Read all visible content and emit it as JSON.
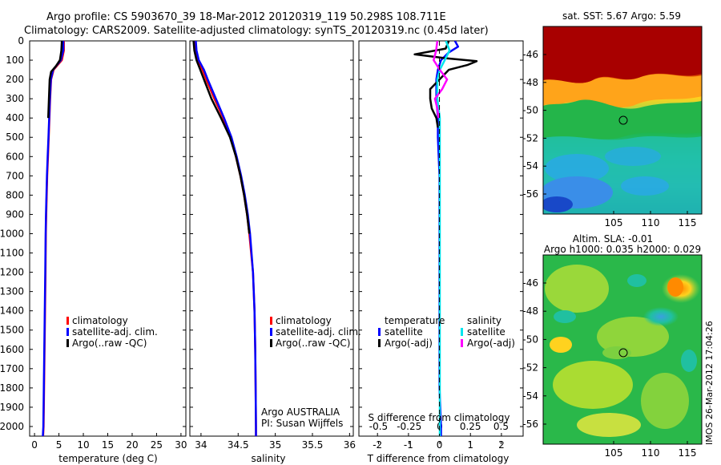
{
  "header": {
    "line1": "Argo profile: CS 5903670_39 18-Mar-2012 20120319_119 50.298S 108.711E",
    "line2": "Climatology: CARS2009. Satellite-adjusted climatology: synTS_20120319.nc (0.45d later)"
  },
  "depth_ticks": [
    "0",
    "100",
    "200",
    "300",
    "400",
    "500",
    "600",
    "700",
    "800",
    "900",
    "1000",
    "1100",
    "1200",
    "1300",
    "1400",
    "1500",
    "1600",
    "1700",
    "1800",
    "1900",
    "2000"
  ],
  "colors": {
    "climatology": "#ff0000",
    "satellite": "#0000ff",
    "argo": "#000000",
    "sal_sat": "#00e5ee",
    "sal_argo": "#ff00ff"
  },
  "temp_panel": {
    "xlabel": "temperature (deg C)",
    "xticks": [
      "0",
      "5",
      "10",
      "15",
      "20",
      "25",
      "30"
    ],
    "legend": [
      "climatology",
      "satellite-adj. clim.",
      "Argo(..raw -QC)"
    ]
  },
  "sal_panel": {
    "xlabel": "salinity",
    "xticks": [
      "34",
      "34.5",
      "35",
      "35.5",
      "36"
    ],
    "legend": [
      "climatology",
      "satellite-adj. clim.",
      "Argo(..raw -QC)"
    ],
    "note1": "Argo AUSTRALIA",
    "note2": "PI: Susan Wijffels"
  },
  "diff_panel": {
    "xlabel": "T difference from climatology",
    "xticks": [
      "-2",
      "-1",
      "0",
      "1",
      "2"
    ],
    "top_label": "S difference from climatology",
    "top_ticks": [
      "-0.5",
      "-0.25",
      "0",
      "0.25",
      "0.5"
    ],
    "legend_t_title": "temperature",
    "legend_s_title": "salinity",
    "legend_t": [
      "satellite",
      "Argo(-adj)"
    ],
    "legend_s": [
      "satellite",
      "Argo(-adj)"
    ]
  },
  "map1": {
    "title": "sat. SST: 5.67 Argo: 5.59",
    "yticks": [
      "-46",
      "-48",
      "-50",
      "-52",
      "-54",
      "-56"
    ],
    "xticks": [
      "105",
      "110",
      "115"
    ]
  },
  "map2": {
    "title1": "Altim. SLA: -0.01",
    "title2": "Argo h1000: 0.035 h2000: 0.029",
    "yticks": [
      "-46",
      "-48",
      "-50",
      "-52",
      "-54",
      "-56"
    ],
    "xticks": [
      "105",
      "110",
      "115"
    ]
  },
  "footer": {
    "stamp": "IMOS 26-Mar-2012 17:04:26"
  },
  "chart_data": [
    {
      "type": "line",
      "xlabel": "temperature (deg C)",
      "xlim": [
        -1,
        31
      ],
      "ylim": [
        2050,
        0
      ],
      "series": [
        {
          "name": "climatology",
          "x": [
            6.0,
            6.0,
            5.6,
            3.9,
            3.4,
            3.2,
            3.05,
            2.9,
            2.75,
            2.6,
            2.5,
            2.4,
            2.32,
            2.25,
            2.15,
            2.05,
            1.95,
            1.85,
            1.75
          ],
          "y": [
            0,
            50,
            100,
            150,
            200,
            300,
            400,
            500,
            600,
            700,
            800,
            900,
            1000,
            1200,
            1400,
            1600,
            1800,
            2000,
            2050
          ]
        },
        {
          "name": "satellite-adj. clim.",
          "x": [
            5.9,
            5.9,
            5.4,
            3.8,
            3.35,
            3.15,
            3.0,
            2.85,
            2.7,
            2.55,
            2.45,
            2.35,
            2.28,
            2.2,
            2.1,
            2.0,
            1.9,
            1.8,
            1.7
          ],
          "y": [
            0,
            50,
            100,
            150,
            200,
            300,
            400,
            500,
            600,
            700,
            800,
            900,
            1000,
            1200,
            1400,
            1600,
            1800,
            2000,
            2050
          ]
        },
        {
          "name": "Argo(..raw -QC)",
          "x": [
            5.6,
            5.5,
            5.2,
            4.4,
            3.4,
            3.1,
            2.95,
            2.8
          ],
          "y": [
            0,
            50,
            100,
            130,
            160,
            200,
            300,
            400
          ]
        }
      ]
    },
    {
      "type": "line",
      "xlabel": "salinity",
      "xlim": [
        33.85,
        36.05
      ],
      "ylim": [
        2050,
        0
      ],
      "series": [
        {
          "name": "climatology",
          "x": [
            33.92,
            33.93,
            33.96,
            34.02,
            34.07,
            34.18,
            34.3,
            34.4,
            34.47,
            34.53,
            34.58,
            34.62,
            34.65,
            34.7,
            34.72,
            34.73,
            34.735,
            34.74,
            34.74
          ],
          "y": [
            0,
            50,
            100,
            150,
            200,
            300,
            400,
            500,
            600,
            700,
            800,
            900,
            1000,
            1200,
            1400,
            1600,
            1800,
            2000,
            2050
          ]
        },
        {
          "name": "satellite-adj. clim.",
          "x": [
            33.93,
            33.94,
            33.97,
            34.04,
            34.09,
            34.2,
            34.31,
            34.41,
            34.48,
            34.54,
            34.59,
            34.63,
            34.66,
            34.7,
            34.72,
            34.73,
            34.735,
            34.74,
            34.74
          ],
          "y": [
            0,
            50,
            100,
            150,
            200,
            300,
            400,
            500,
            600,
            700,
            800,
            900,
            1000,
            1200,
            1400,
            1600,
            1800,
            2000,
            2050
          ]
        },
        {
          "name": "Argo(..raw -QC)",
          "x": [
            33.9,
            33.91,
            33.94,
            33.99,
            34.04,
            34.14,
            34.27,
            34.39,
            34.47,
            34.53,
            34.58,
            34.62,
            34.65
          ],
          "y": [
            0,
            50,
            100,
            150,
            200,
            300,
            400,
            500,
            600,
            700,
            800,
            900,
            1000
          ]
        }
      ]
    },
    {
      "type": "line",
      "xlabel": "T difference from climatology",
      "xlim": [
        -2.6,
        2.7
      ],
      "ylim": [
        2050,
        0
      ],
      "series": [
        {
          "name": "satellite",
          "x": [
            0.5,
            0.6,
            0.3,
            0.05,
            -0.05,
            -0.1,
            -0.1,
            -0.05,
            -0.05,
            0.0,
            0.0,
            0.0,
            0.0,
            0.0,
            0.05,
            0.05
          ],
          "y": [
            0,
            30,
            60,
            100,
            150,
            200,
            300,
            400,
            500,
            700,
            900,
            1200,
            1500,
            1800,
            2000,
            2050
          ]
        },
        {
          "name": "Argo(-adj)",
          "x": [
            0.3,
            0.2,
            -0.8,
            0.2,
            1.2,
            0.9,
            0.3,
            0.0,
            -0.3,
            -0.3,
            -0.25,
            -0.1,
            -0.05
          ],
          "y": [
            0,
            40,
            70,
            90,
            105,
            125,
            150,
            200,
            250,
            300,
            350,
            400,
            450
          ]
        }
      ]
    },
    {
      "type": "line",
      "xlabel": "S difference from climatology",
      "xlim": [
        -0.66,
        0.68
      ],
      "ylim": [
        2050,
        0
      ],
      "series": [
        {
          "name": "satellite",
          "x": [
            0.05,
            0.08,
            0.04,
            0.0,
            -0.02,
            -0.02,
            0.0,
            0.0,
            0.0,
            0.0,
            0.0,
            0.0,
            0.0
          ],
          "y": [
            0,
            50,
            100,
            150,
            200,
            300,
            400,
            600,
            800,
            1000,
            1400,
            1800,
            2050
          ]
        },
        {
          "name": "Argo(-adj)",
          "x": [
            -0.02,
            -0.03,
            -0.05,
            0.0,
            0.06,
            0.02,
            -0.04,
            -0.02,
            -0.01
          ],
          "y": [
            0,
            50,
            100,
            150,
            200,
            250,
            300,
            350,
            400
          ]
        }
      ]
    }
  ]
}
